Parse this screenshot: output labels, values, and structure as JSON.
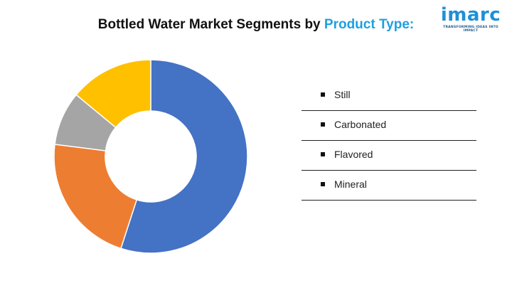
{
  "header": {
    "title_main": "Bottled Water Market Segments by ",
    "title_accent": "Product Type:"
  },
  "logo": {
    "name": "imarc",
    "tagline": "TRANSFORMING IDEAS INTO IMPACT"
  },
  "colors": {
    "accent": "#1ea0e0",
    "still": "#4472c4",
    "carbonated": "#ed7d31",
    "flavored": "#a5a5a5",
    "mineral": "#ffc000"
  },
  "chart_data": {
    "type": "pie",
    "style": "donut",
    "title": "Bottled Water Market Segments by Product Type:",
    "legend": "right",
    "categories": [
      "Still",
      "Carbonated",
      "Flavored",
      "Mineral"
    ],
    "values": [
      55,
      22,
      9,
      14
    ],
    "colors": [
      "#4472c4",
      "#ed7d31",
      "#a5a5a5",
      "#ffc000"
    ]
  },
  "legend": {
    "items": [
      {
        "label": "Still"
      },
      {
        "label": "Carbonated"
      },
      {
        "label": "Flavored"
      },
      {
        "label": "Mineral"
      }
    ]
  }
}
